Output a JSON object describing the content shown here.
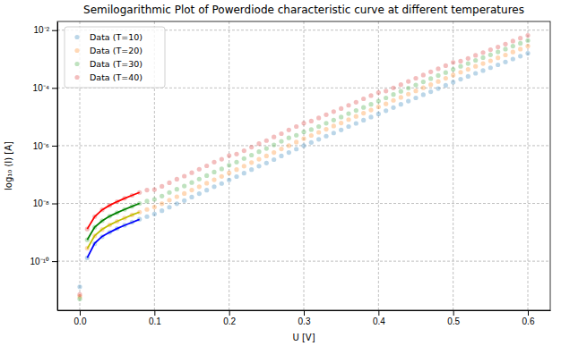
{
  "chart_data": {
    "type": "scatter",
    "title": "Semilogarithmic Plot of Powerdiode characteristic curve at different temperatures",
    "x_label": "U [V]",
    "y_label": "log₁₀ (I) [A]",
    "log": "y",
    "grid": true,
    "legend": "upper left",
    "xlim": [
      -0.03,
      0.63
    ],
    "ylim": [
      2e-12,
      0.02
    ],
    "xticks": [
      {
        "value": 0,
        "label": "0.0"
      },
      0.1,
      0.2,
      0.3,
      0.4,
      0.5,
      0.6
    ],
    "yticks": [
      {
        "value": 1e-10,
        "label": "10⁻¹⁰"
      },
      {
        "value": 1e-08,
        "label": "10⁻⁸"
      },
      {
        "value": 1e-06,
        "label": "10⁻⁶"
      },
      {
        "value": 0.0001,
        "label": "10⁻⁴"
      },
      {
        "value": 0.01,
        "label": "10⁻²"
      }
    ],
    "x": [
      0,
      0.01,
      0.02,
      0.03,
      0.04,
      0.05,
      0.06,
      0.07,
      0.08,
      0.09,
      0.1,
      0.11,
      0.12,
      0.13,
      0.14,
      0.15,
      0.16,
      0.17,
      0.18,
      0.19,
      0.2,
      0.21,
      0.22,
      0.23,
      0.24,
      0.25,
      0.26,
      0.27,
      0.28,
      0.29,
      0.3,
      0.31,
      0.32,
      0.33,
      0.34,
      0.35,
      0.36,
      0.37,
      0.38,
      0.39,
      0.4,
      0.41,
      0.42,
      0.43,
      0.44,
      0.45,
      0.46,
      0.47,
      0.48,
      0.49,
      0.5,
      0.51,
      0.52,
      0.53,
      0.54,
      0.55,
      0.56,
      0.57,
      0.58,
      0.59,
      0.6
    ],
    "series": [
      {
        "name": "Data (T=10)",
        "color": "#1f77b4",
        "marker": "o",
        "values": [
          1.3e-11,
          1.3e-10,
          4e-10,
          7e-10,
          1e-09,
          1.35e-09,
          1.75e-09,
          2.25e-09,
          2.85e-09,
          3.5e-09,
          4.3e-09,
          5.6e-09,
          7.4e-09,
          9.8e-09,
          1.26e-08,
          1.66e-08,
          2.19e-08,
          2.88e-08,
          3.8e-08,
          4.9e-08,
          6.5e-08,
          8.5e-08,
          1.12e-07,
          1.48e-07,
          1.95e-07,
          2.5e-07,
          3.3e-07,
          4.4e-07,
          5.8e-07,
          7.6e-07,
          1e-06,
          1.29e-06,
          1.66e-06,
          2.14e-06,
          2.75e-06,
          3.5e-06,
          4.6e-06,
          5.9e-06,
          7.6e-06,
          9.8e-06,
          1.26e-05,
          1.62e-05,
          2.09e-05,
          2.7e-05,
          3.5e-05,
          4.5e-05,
          5.8e-05,
          7.4e-05,
          9.5e-05,
          0.000123,
          0.000158,
          0.0002,
          0.00025,
          0.00032,
          0.0004,
          0.0005,
          0.00063,
          0.00079,
          0.001,
          0.00126,
          0.00158
        ]
      },
      {
        "name": "Data (T=20)",
        "color": "#ff7f0e",
        "marker": "o",
        "values": [
          6e-12,
          2.8e-10,
          7.5e-10,
          1.25e-09,
          1.8e-09,
          2.4e-09,
          3.1e-09,
          4e-09,
          5e-09,
          6.2e-09,
          7.5e-09,
          9.8e-09,
          1.3e-08,
          1.71e-08,
          2.2e-08,
          2.9e-08,
          3.8e-08,
          5e-08,
          6.6e-08,
          8.6e-08,
          1.14e-07,
          1.49e-07,
          1.96e-07,
          2.6e-07,
          3.4e-07,
          4.4e-07,
          5.8e-07,
          7.7e-07,
          1e-06,
          1.33e-06,
          1.75e-06,
          2.26e-06,
          2.9e-06,
          3.7e-06,
          4.8e-06,
          6.1e-06,
          8e-06,
          1.03e-05,
          1.33e-05,
          1.71e-05,
          2.2e-05,
          2.8e-05,
          3.7e-05,
          4.7e-05,
          6.1e-05,
          7.9e-05,
          0.000101,
          0.00013,
          0.000166,
          0.000215,
          0.00028,
          0.00035,
          0.00044,
          0.00056,
          0.0007,
          0.00087,
          0.0011,
          0.00138,
          0.00175,
          0.0022,
          0.0028
        ]
      },
      {
        "name": "Data (T=30)",
        "color": "#2ca02c",
        "marker": "o",
        "values": [
          5e-12,
          5.5e-10,
          1.5e-09,
          2.5e-09,
          3.6e-09,
          4.8e-09,
          6.2e-09,
          7.9e-09,
          1e-08,
          1.2e-08,
          1.38e-08,
          1.79e-08,
          2.4e-08,
          3.1e-08,
          4e-08,
          5.3e-08,
          7e-08,
          9.2e-08,
          1.22e-07,
          1.57e-07,
          2.1e-07,
          2.7e-07,
          3.6e-07,
          4.7e-07,
          6.2e-07,
          8e-07,
          1.06e-06,
          1.41e-06,
          1.86e-06,
          2.3e-06,
          3e-06,
          3.6e-06,
          4.6e-06,
          6e-06,
          7.7e-06,
          9.8e-06,
          1.29e-05,
          1.65e-05,
          2.1e-05,
          2.7e-05,
          3.5e-05,
          4.5e-05,
          5.9e-05,
          7.6e-05,
          9.8e-05,
          0.000126,
          0.000162,
          0.00021,
          0.00027,
          0.00034,
          0.00044,
          0.00056,
          0.0007,
          0.0009,
          0.00112,
          0.0014,
          0.00176,
          0.0022,
          0.0028,
          0.0035,
          0.0044
        ]
      },
      {
        "name": "Data (T=40)",
        "color": "#d62728",
        "marker": "o",
        "values": [
          7e-12,
          1.3e-09,
          3.5e-09,
          6e-09,
          8.6e-09,
          1.15e-08,
          1.5e-08,
          1.9e-08,
          2.4e-08,
          2.9e-08,
          3e-08,
          3.9e-08,
          5.2e-08,
          6.9e-08,
          8.8e-08,
          1.16e-07,
          1.53e-07,
          2e-07,
          2.7e-07,
          3.4e-07,
          4.5e-07,
          5.1e-07,
          6.7e-07,
          8.9e-07,
          1.17e-06,
          1.5e-06,
          2e-06,
          2.6e-06,
          3.5e-06,
          4.6e-06,
          6e-06,
          7.1e-06,
          9.1e-06,
          1.18e-05,
          1.51e-05,
          1.93e-05,
          2.5e-05,
          3.2e-05,
          4.2e-05,
          5.4e-05,
          6.9e-05,
          7.8e-05,
          0.0001,
          0.00013,
          0.000168,
          0.000216,
          0.00028,
          0.00036,
          0.00046,
          0.00059,
          0.00076,
          0.00084,
          0.00105,
          0.00134,
          0.00168,
          0.0021,
          0.0026,
          0.0033,
          0.0042,
          0.0053,
          0.0066
        ]
      },
      {
        "type": "line",
        "color": "#0000ff",
        "line_style": "solid",
        "x": [
          0.01,
          0.02,
          0.03,
          0.04,
          0.05,
          0.06,
          0.07,
          0.08
        ],
        "values": [
          1.3e-10,
          4.2e-10,
          7.2e-10,
          1e-09,
          1.35e-09,
          1.75e-09,
          2.2e-09,
          2.8e-09
        ]
      },
      {
        "type": "line",
        "color": "#bfbf00",
        "line_style": "solid",
        "x": [
          0.01,
          0.02,
          0.03,
          0.04,
          0.05,
          0.06,
          0.07,
          0.08
        ],
        "values": [
          2.7e-10,
          7.6e-10,
          1.27e-09,
          1.8e-09,
          2.4e-09,
          3.1e-09,
          4e-09,
          5e-09
        ]
      },
      {
        "type": "line",
        "color": "#008000",
        "line_style": "solid",
        "x": [
          0.01,
          0.02,
          0.03,
          0.04,
          0.05,
          0.06,
          0.07,
          0.08
        ],
        "values": [
          5.5e-10,
          1.5e-09,
          2.5e-09,
          3.6e-09,
          4.8e-09,
          6.2e-09,
          7.9e-09,
          1e-08
        ]
      },
      {
        "type": "line",
        "color": "#ff0000",
        "line_style": "solid",
        "x": [
          0.01,
          0.02,
          0.03,
          0.04,
          0.05,
          0.06,
          0.07,
          0.08
        ],
        "values": [
          1.3e-09,
          3.5e-09,
          6e-09,
          8.6e-09,
          1.15e-08,
          1.5e-08,
          1.9e-08,
          2.4e-08
        ]
      }
    ]
  }
}
